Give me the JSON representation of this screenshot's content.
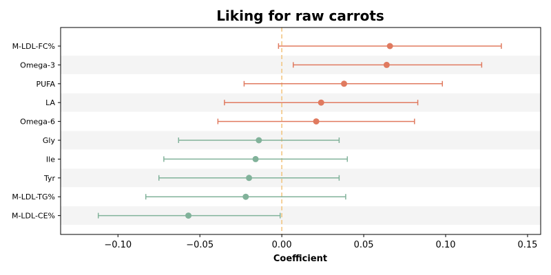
{
  "chart_data": {
    "type": "forest",
    "title": "Liking for raw carrots",
    "xlabel": "Coefficient",
    "ylabel": "",
    "xlim": [
      -0.135,
      0.158
    ],
    "xticks": [
      -0.1,
      -0.05,
      0.0,
      0.05,
      0.1,
      0.15
    ],
    "xtick_labels": [
      "−0.10",
      "−0.05",
      "0.00",
      "0.05",
      "0.10",
      "0.15"
    ],
    "reference_line": 0.0,
    "colors": {
      "positive": "#e07a5f",
      "negative": "#81b29a",
      "reference": "#f2c27a",
      "band": "#f4f4f4"
    },
    "rows": [
      {
        "label": "M-LDL-FC%",
        "coef": 0.066,
        "lo": -0.002,
        "hi": 0.134,
        "sign": "positive"
      },
      {
        "label": "Omega-3",
        "coef": 0.064,
        "lo": 0.007,
        "hi": 0.122,
        "sign": "positive"
      },
      {
        "label": "PUFA",
        "coef": 0.038,
        "lo": -0.023,
        "hi": 0.098,
        "sign": "positive"
      },
      {
        "label": "LA",
        "coef": 0.024,
        "lo": -0.035,
        "hi": 0.083,
        "sign": "positive"
      },
      {
        "label": "Omega-6",
        "coef": 0.021,
        "lo": -0.039,
        "hi": 0.081,
        "sign": "positive"
      },
      {
        "label": "Gly",
        "coef": -0.014,
        "lo": -0.063,
        "hi": 0.035,
        "sign": "negative"
      },
      {
        "label": "Ile",
        "coef": -0.016,
        "lo": -0.072,
        "hi": 0.04,
        "sign": "negative"
      },
      {
        "label": "Tyr",
        "coef": -0.02,
        "lo": -0.075,
        "hi": 0.035,
        "sign": "negative"
      },
      {
        "label": "M-LDL-TG%",
        "coef": -0.022,
        "lo": -0.083,
        "hi": 0.039,
        "sign": "negative"
      },
      {
        "label": "M-LDL-CE%",
        "coef": -0.057,
        "lo": -0.112,
        "hi": -0.001,
        "sign": "negative"
      }
    ]
  }
}
